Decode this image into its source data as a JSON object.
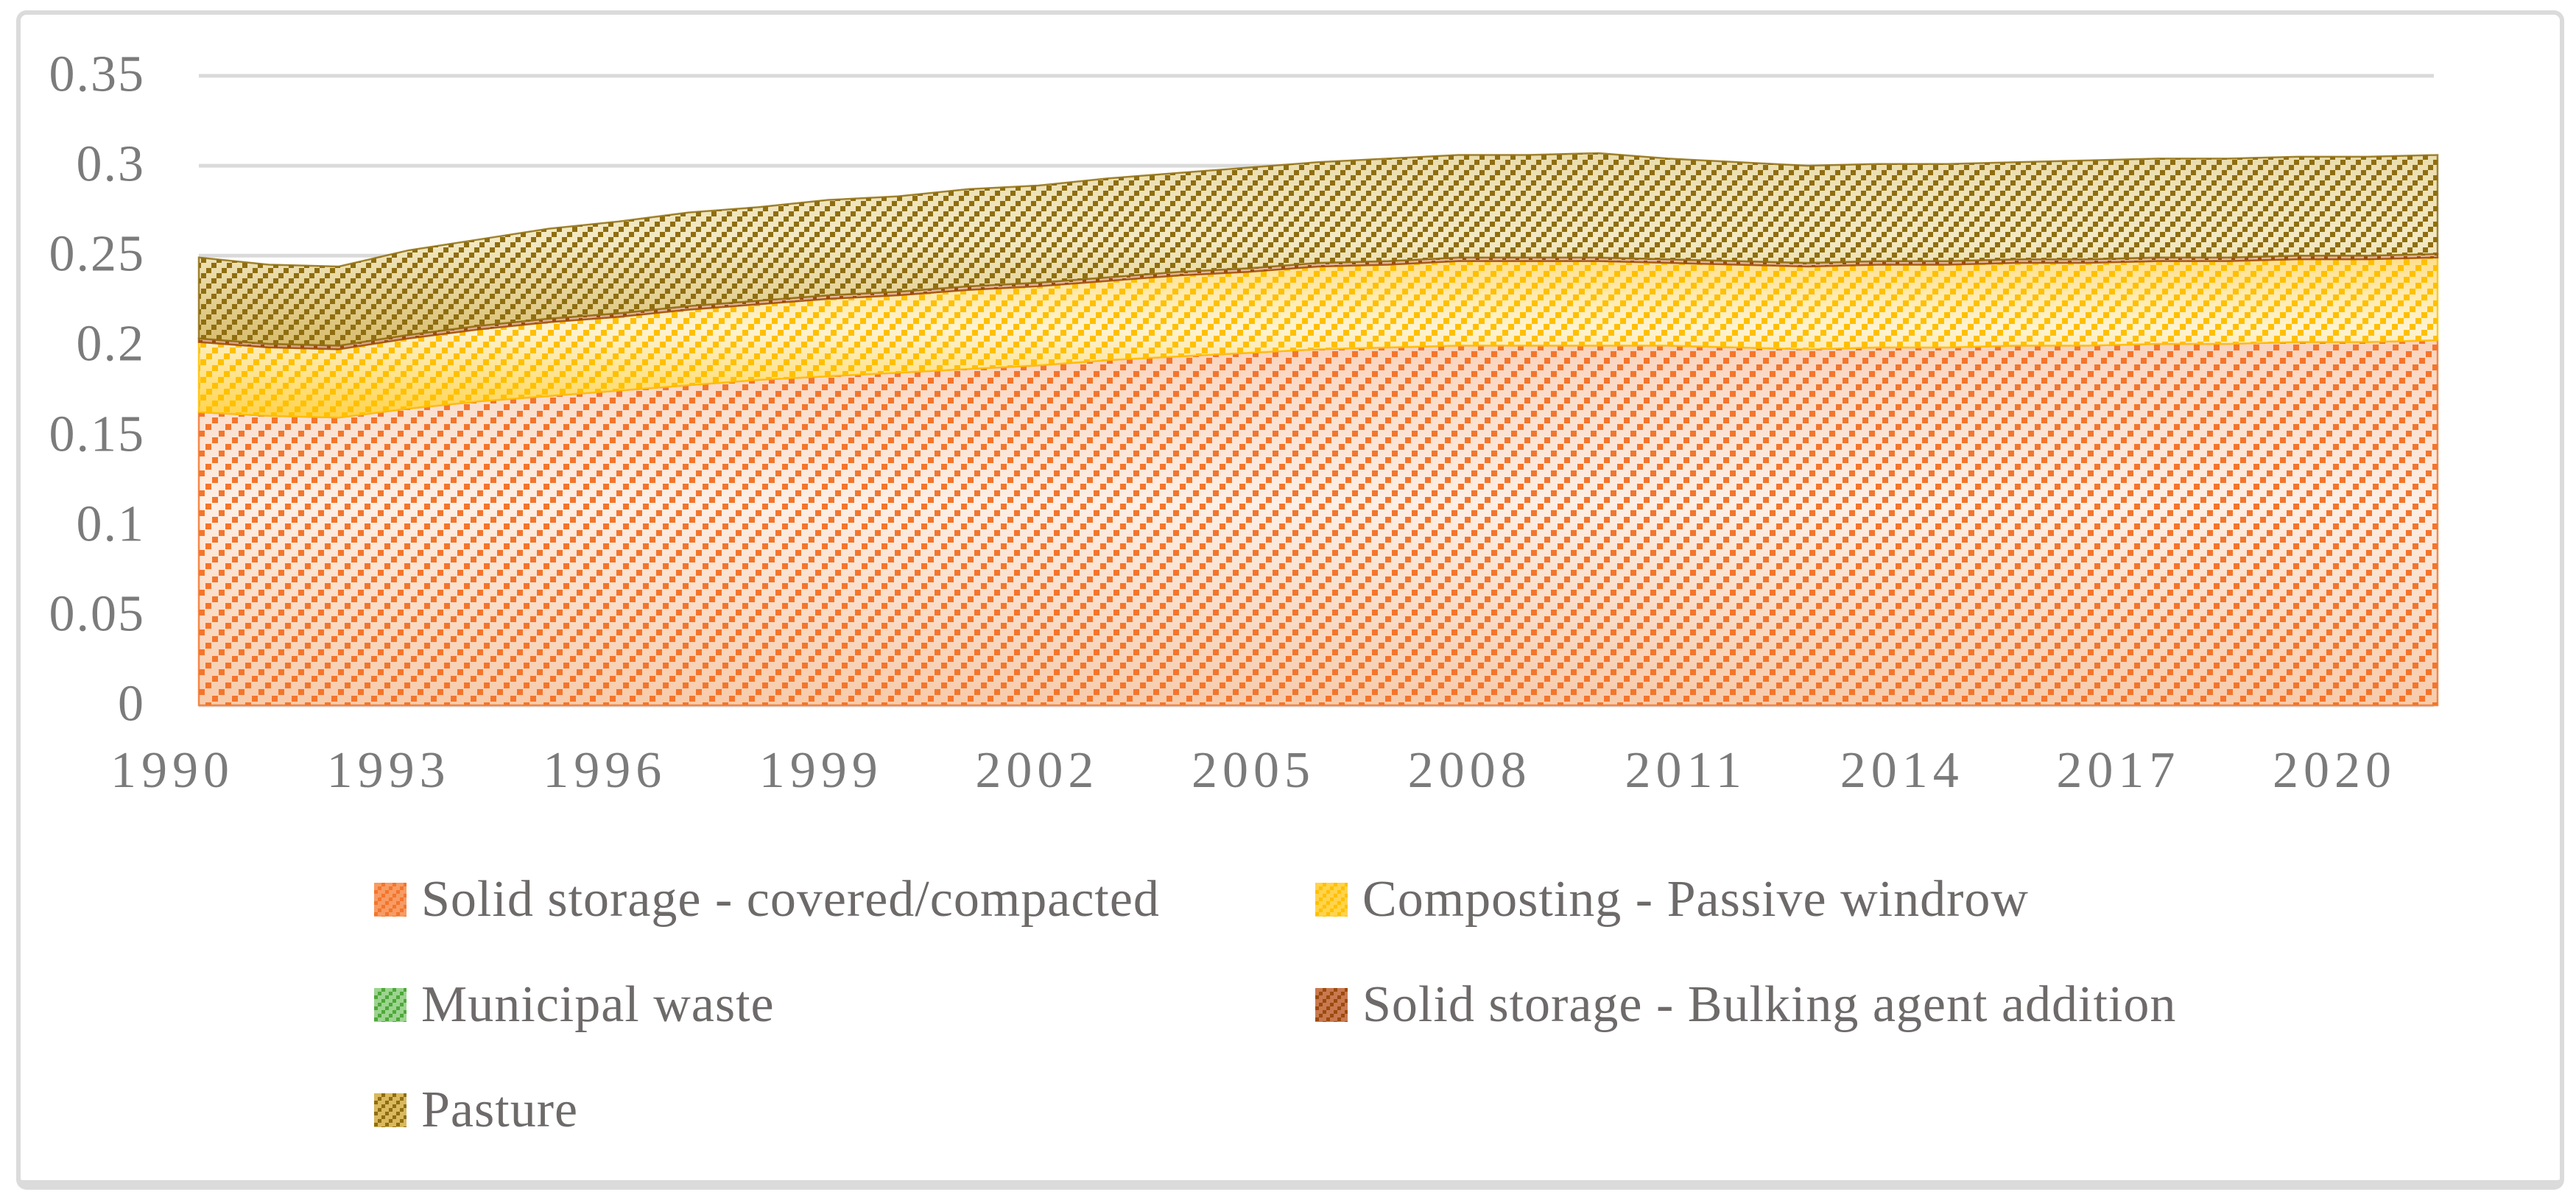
{
  "figure": {
    "title": "",
    "frame_color": "#DBDBDB",
    "grid_color": "#DADADA",
    "axis_text_color": "#7B7B7B",
    "legend_text_color": "#6E6A6A"
  },
  "chart_data": {
    "type": "area",
    "stacked": true,
    "title": "",
    "xlabel": "",
    "ylabel": "",
    "grid": true,
    "legend_position": "bottom",
    "ylim": [
      0,
      0.35
    ],
    "y_tick_labels": [
      "0",
      "0.05",
      "0.1",
      "0.15",
      "0.2",
      "0.25",
      "0.3",
      "0.35"
    ],
    "x": [
      1990,
      1991,
      1992,
      1993,
      1994,
      1995,
      1996,
      1997,
      1998,
      1999,
      2000,
      2001,
      2002,
      2003,
      2004,
      2005,
      2006,
      2007,
      2008,
      2009,
      2010,
      2011,
      2012,
      2013,
      2014,
      2015,
      2016,
      2017,
      2018,
      2019,
      2020,
      2021,
      2022
    ],
    "x_tick_labels": [
      "1990",
      "1993",
      "1996",
      "1999",
      "2002",
      "2005",
      "2008",
      "2011",
      "2014",
      "2017",
      "2020"
    ],
    "series": [
      {
        "name": "Solid storage - covered/compacted",
        "values": [
          0.163,
          0.161,
          0.16,
          0.165,
          0.169,
          0.172,
          0.175,
          0.178,
          0.181,
          0.183,
          0.185,
          0.187,
          0.189,
          0.192,
          0.194,
          0.196,
          0.198,
          0.199,
          0.2,
          0.2,
          0.2,
          0.2,
          0.199,
          0.198,
          0.199,
          0.199,
          0.2,
          0.2,
          0.201,
          0.201,
          0.202,
          0.202,
          0.203
        ],
        "colors": {
          "stripe": "#F4752B",
          "bg_top": "#F9D3BC",
          "bg_mid": "#FCEFE5",
          "bg_bottom": "#F7CBAB",
          "swatch_bg": "#F79B63"
        }
      },
      {
        "name": "Composting - Passive windrow",
        "values": [
          0.039,
          0.038,
          0.038,
          0.039,
          0.04,
          0.041,
          0.041,
          0.042,
          0.042,
          0.043,
          0.043,
          0.044,
          0.044,
          0.044,
          0.045,
          0.045,
          0.046,
          0.046,
          0.047,
          0.047,
          0.047,
          0.046,
          0.046,
          0.046,
          0.046,
          0.046,
          0.046,
          0.046,
          0.046,
          0.046,
          0.046,
          0.046,
          0.046
        ],
        "colors": {
          "stripe": "#FFC000",
          "bg_top": "#FFDF8C",
          "bg_mid": "#FFF3CF",
          "bg_bottom": "#FFD34D",
          "swatch_bg": "#FFD34D"
        }
      },
      {
        "name": "Municipal waste",
        "values": [
          0,
          0,
          0,
          0,
          0,
          0,
          0,
          0,
          0,
          0,
          0,
          0,
          0,
          0,
          0,
          0,
          0,
          0,
          0,
          0,
          0,
          0,
          0,
          0,
          0,
          0,
          0,
          0,
          0,
          0,
          0,
          0,
          0
        ],
        "colors": {
          "stripe": "#4EA839",
          "bg_top": "#C9E5BE",
          "bg_mid": "#D8ECCF",
          "bg_bottom": "#A9D9A0",
          "swatch_bg": "#9CD48F"
        }
      },
      {
        "name": "Solid storage - Bulking agent addition",
        "values": [
          0.002,
          0.002,
          0.002,
          0.002,
          0.002,
          0.002,
          0.002,
          0.002,
          0.002,
          0.002,
          0.002,
          0.002,
          0.002,
          0.002,
          0.002,
          0.002,
          0.002,
          0.002,
          0.002,
          0.002,
          0.002,
          0.002,
          0.002,
          0.002,
          0.002,
          0.002,
          0.002,
          0.002,
          0.002,
          0.002,
          0.002,
          0.002,
          0.002
        ],
        "colors": {
          "stripe": "#9C4A0D",
          "bg_top": "#E3B79B",
          "bg_mid": "#E3B79B",
          "bg_bottom": "#D8A585",
          "swatch_bg": "#C97950"
        }
      },
      {
        "name": "Pasture",
        "values": [
          0.045,
          0.044,
          0.044,
          0.047,
          0.048,
          0.05,
          0.051,
          0.052,
          0.052,
          0.053,
          0.053,
          0.054,
          0.054,
          0.055,
          0.055,
          0.056,
          0.056,
          0.057,
          0.057,
          0.057,
          0.058,
          0.056,
          0.055,
          0.054,
          0.054,
          0.054,
          0.054,
          0.055,
          0.055,
          0.055,
          0.055,
          0.055,
          0.055
        ],
        "colors": {
          "stripe": "#8F6E10",
          "bg_top": "#EADCAC",
          "bg_mid": "#F3E9C3",
          "bg_bottom": "#D8BC6C",
          "swatch_bg": "#D9B85E"
        }
      }
    ]
  },
  "legend": {
    "rows": [
      [
        0,
        1
      ],
      [
        2,
        3
      ],
      [
        4
      ]
    ]
  }
}
